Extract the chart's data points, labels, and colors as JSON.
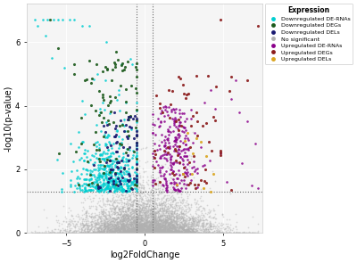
{
  "title": "",
  "xlabel": "log2FoldChange",
  "ylabel": "-log10(p-value)",
  "xlim": [
    -7.5,
    7.5
  ],
  "ylim": [
    0,
    7.2
  ],
  "x_ticks": [
    -5,
    0,
    5
  ],
  "y_ticks": [
    0,
    2,
    4,
    6
  ],
  "vline1": -0.5,
  "vline2": 0.5,
  "hline": 1.3,
  "colors": {
    "down_rna": "#00CED1",
    "down_deg": "#1C5A1C",
    "down_del": "#191970",
    "no_sig": "#B0B0B0",
    "up_rna": "#8B008B",
    "up_deg": "#8B1A1A",
    "up_del": "#DAA520"
  },
  "legend_labels": [
    "Downregulated DE-RNAs",
    "Downregulated DEGs",
    "Downregulated DELs",
    "No significant",
    "Upregulated DE-RNAs",
    "Upregulated DEGs",
    "Upregulated DELs"
  ],
  "legend_title": "Expression",
  "background_color": "#FFFFFF",
  "panel_bg": "#F5F5F5",
  "grid_color": "#FFFFFF",
  "border_color": "#CCCCCC"
}
